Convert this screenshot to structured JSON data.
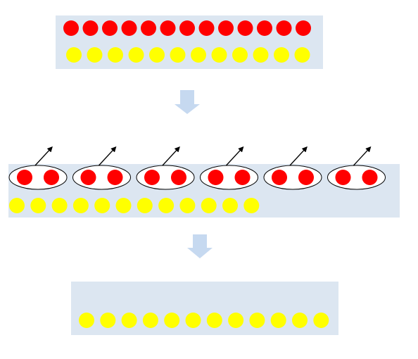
{
  "colors": {
    "panel": "#dce6f1",
    "red_particle": "#ff0000",
    "yellow_particle": "#ffff00",
    "arrow_down": "#c6d9f0",
    "pair_outline": "#000000",
    "pair_fill": "#ffffff",
    "escape_arrow": "#000000"
  },
  "stages": [
    {
      "name": "initial-mixture",
      "red_count": 13,
      "yellow_count": 12
    },
    {
      "name": "pairing-and-escape",
      "red_pairs": 6,
      "yellow_count": 12
    },
    {
      "name": "remaining",
      "red_count": 0,
      "yellow_count": 12
    }
  ],
  "icons": {
    "down_arrow": "block-arrow-down-icon",
    "escape_arrow": "diagonal-arrow-icon"
  }
}
